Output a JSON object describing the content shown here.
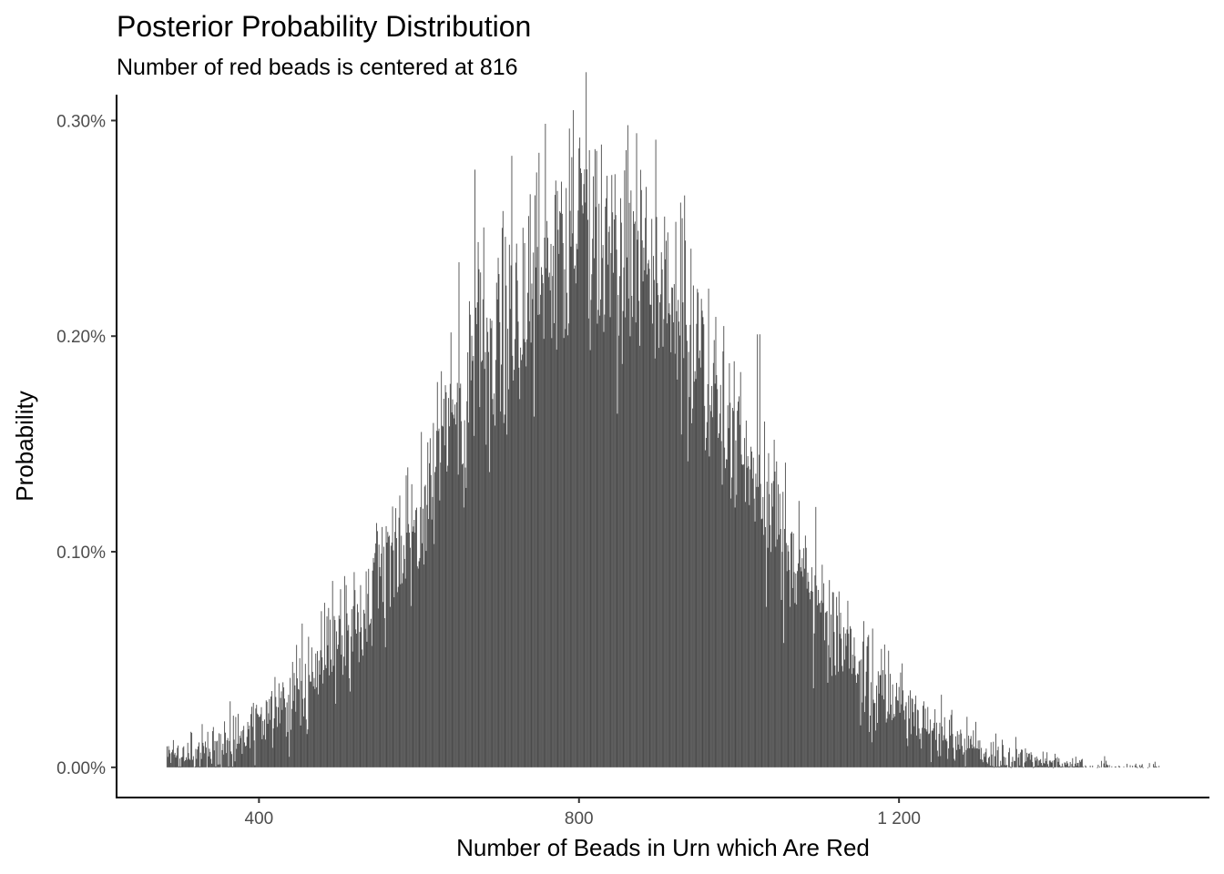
{
  "chart_data": {
    "type": "bar",
    "title": "Posterior Probability Distribution",
    "subtitle": "Number of red beads is centered at 816",
    "xlabel": "Number of Beads in Urn which Are Red",
    "ylabel": "Probability",
    "xlim": [
      222,
      1588
    ],
    "ylim": [
      -0.00014,
      0.00312
    ],
    "x_ticks": [
      {
        "value": 400,
        "label": "400"
      },
      {
        "value": 800,
        "label": "800"
      },
      {
        "value": 1200,
        "label": "1 200"
      }
    ],
    "y_ticks": [
      {
        "value": 0.0,
        "label": "0.00%"
      },
      {
        "value": 0.001,
        "label": "0.10%"
      },
      {
        "value": 0.002,
        "label": "0.20%"
      },
      {
        "value": 0.003,
        "label": "0.30%"
      }
    ],
    "distribution": {
      "center": 816,
      "peak_probability": 0.0025,
      "sd": 185,
      "x_min": 285,
      "x_max": 1525,
      "bin_width": 1
    },
    "grid": false,
    "legend": "none",
    "colors": {
      "bar": "#4b4b4b",
      "axis": "#000000",
      "tick_label": "#4d4d4d"
    }
  }
}
